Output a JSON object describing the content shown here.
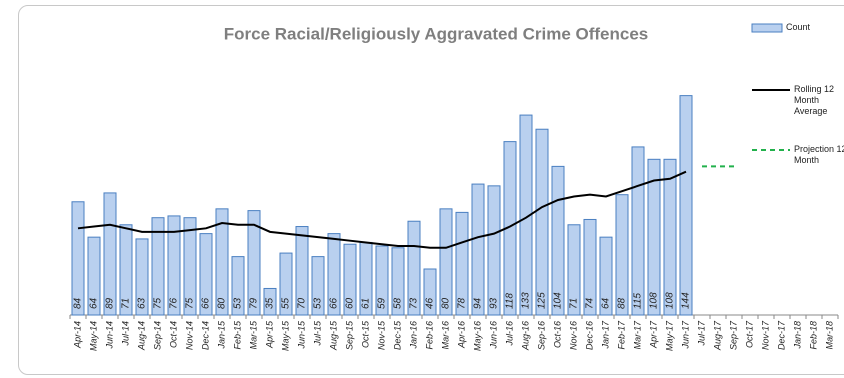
{
  "chart_data": {
    "type": "bar",
    "title": "Force Racial/Religiously Aggravated Crime Offences",
    "categories": [
      "Apr-14",
      "May-14",
      "Jun-14",
      "Jul-14",
      "Aug-14",
      "Sep-14",
      "Oct-14",
      "Nov-14",
      "Dec-14",
      "Jan-15",
      "Feb-15",
      "Mar-15",
      "Apr-15",
      "May-15",
      "Jun-15",
      "Jul-15",
      "Aug-15",
      "Sep-15",
      "Oct-15",
      "Nov-15",
      "Dec-15",
      "Jan-16",
      "Feb-16",
      "Mar-16",
      "Apr-16",
      "May-16",
      "Jun-16",
      "Jul-16",
      "Aug-16",
      "Sep-16",
      "Oct-16",
      "Nov-16",
      "Dec-16",
      "Jan-17",
      "Feb-17",
      "Mar-17",
      "Apr-17",
      "May-17",
      "Jun-17",
      "Jul-17",
      "Aug-17",
      "Sep-17",
      "Oct-17",
      "Nov-17",
      "Dec-17",
      "Jan-18",
      "Feb-18",
      "Mar-18"
    ],
    "series": [
      {
        "name": "Count",
        "type": "bar",
        "color": "#b9d0ef",
        "values": [
          84,
          64,
          89,
          71,
          63,
          75,
          76,
          75,
          66,
          80,
          53,
          79,
          35,
          55,
          70,
          53,
          66,
          60,
          61,
          59,
          58,
          73,
          46,
          80,
          78,
          94,
          93,
          118,
          133,
          125,
          104,
          71,
          74,
          64,
          88,
          115,
          108,
          108,
          144,
          null,
          null,
          null,
          null,
          null,
          null,
          null,
          null,
          null
        ]
      },
      {
        "name": "Rolling 12 Month Average",
        "type": "line",
        "color": "#000000",
        "values": [
          69,
          70,
          71,
          69,
          67,
          67,
          67,
          68,
          69,
          72,
          71,
          71,
          67,
          66,
          65,
          64,
          63,
          62,
          61,
          60,
          59,
          59,
          58,
          58,
          61,
          64,
          66,
          70,
          75,
          81,
          85,
          87,
          88,
          87,
          90,
          93,
          96,
          97,
          101,
          null,
          null,
          null,
          null,
          null,
          null,
          null,
          null,
          null
        ]
      },
      {
        "name": "Projection 12 Month",
        "type": "line",
        "dashed": true,
        "color": "#22b14c",
        "values": [
          null,
          null,
          null,
          null,
          null,
          null,
          null,
          null,
          null,
          null,
          null,
          null,
          null,
          null,
          null,
          null,
          null,
          null,
          null,
          null,
          null,
          null,
          null,
          null,
          null,
          null,
          null,
          null,
          null,
          null,
          null,
          null,
          null,
          null,
          null,
          null,
          null,
          null,
          null,
          104,
          104,
          104,
          null,
          null,
          null,
          null,
          null,
          null
        ]
      }
    ],
    "ylim": [
      20,
      150
    ]
  }
}
